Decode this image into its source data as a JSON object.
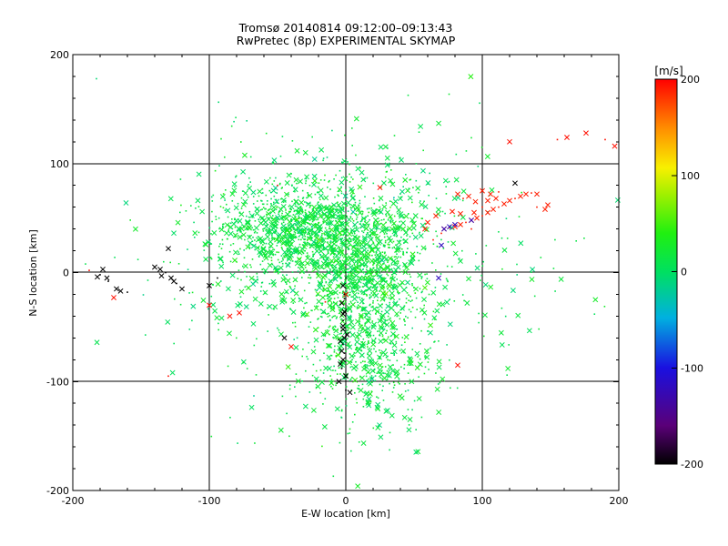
{
  "chart_data": {
    "type": "scatter",
    "title": "Tromsø 20140814 09:12:00–09:13:43",
    "subtitle": "RwPretec (8p) EXPERIMENTAL SKYMAP",
    "xlabel": "E-W location [km]",
    "ylabel": "N-S location [km]",
    "xlim": [
      -200,
      200
    ],
    "ylim": [
      -200,
      200
    ],
    "xticks": [
      "-200",
      "-100",
      "0",
      "100",
      "200"
    ],
    "yticks": [
      "-200",
      "-100",
      "0",
      "100",
      "200"
    ],
    "grid": true,
    "marker_styles": [
      "dot",
      "cross"
    ],
    "colorbar": {
      "label": "[m/s]",
      "range": [
        -200,
        200
      ],
      "ticks": [
        "200",
        "100",
        "0",
        "-100",
        "-200"
      ],
      "colormap": "rainbow (black-purple-blue-cyan-green-yellow-red)"
    },
    "clusters": [
      {
        "x": 5,
        "y": 10,
        "sx": 25,
        "sy": 30,
        "n": 900,
        "v": 20
      },
      {
        "x": -40,
        "y": 40,
        "sx": 30,
        "sy": 20,
        "n": 700,
        "v": 15
      },
      {
        "x": 15,
        "y": -70,
        "sx": 22,
        "sy": 35,
        "n": 500,
        "v": 15
      },
      {
        "x": 0,
        "y": 0,
        "sx": 70,
        "sy": 60,
        "n": 500,
        "v": 10
      },
      {
        "x": 0,
        "y": 50,
        "sx": 50,
        "sy": 40,
        "n": 250,
        "v": 10
      }
    ],
    "series": [
      {
        "name": "red arc",
        "v": 190,
        "points": [
          [
            72,
            40
          ],
          [
            76,
            41
          ],
          [
            80,
            42
          ],
          [
            84,
            44
          ],
          [
            88,
            46
          ],
          [
            92,
            48
          ],
          [
            96,
            50
          ],
          [
            100,
            52
          ],
          [
            104,
            55
          ],
          [
            108,
            58
          ],
          [
            112,
            60
          ],
          [
            116,
            63
          ],
          [
            120,
            66
          ],
          [
            124,
            68
          ],
          [
            128,
            70
          ],
          [
            132,
            72
          ],
          [
            136,
            73
          ],
          [
            140,
            72
          ],
          [
            82,
            72
          ],
          [
            86,
            68
          ],
          [
            90,
            70
          ],
          [
            95,
            65
          ],
          [
            100,
            60
          ],
          [
            104,
            66
          ],
          [
            110,
            68
          ],
          [
            140,
            60
          ],
          [
            146,
            58
          ],
          [
            58,
            40
          ],
          [
            64,
            30
          ],
          [
            60,
            46
          ],
          [
            66,
            52
          ],
          [
            70,
            36
          ],
          [
            78,
            56
          ],
          [
            84,
            54
          ],
          [
            92,
            40
          ],
          [
            148,
            62
          ],
          [
            106,
            72
          ],
          [
            112,
            74
          ],
          [
            100,
            75
          ],
          [
            94,
            55
          ]
        ]
      },
      {
        "name": "red sparse",
        "v": 195,
        "points": [
          [
            -100,
            -30
          ],
          [
            -130,
            -95
          ],
          [
            -170,
            -23
          ],
          [
            -78,
            -37
          ],
          [
            -15,
            -27
          ],
          [
            -40,
            -68
          ],
          [
            25,
            78
          ],
          [
            -50,
            80
          ],
          [
            0,
            -20
          ],
          [
            82,
            -85
          ],
          [
            -188,
            2
          ],
          [
            -85,
            -40
          ],
          [
            120,
            120
          ],
          [
            155,
            122
          ],
          [
            162,
            124
          ],
          [
            176,
            128
          ],
          [
            190,
            122
          ],
          [
            197,
            116
          ]
        ]
      },
      {
        "name": "blue",
        "v": -120,
        "points": [
          [
            68,
            -5
          ],
          [
            70,
            25
          ],
          [
            72,
            40
          ],
          [
            76,
            42
          ],
          [
            80,
            44
          ],
          [
            92,
            48
          ]
        ]
      },
      {
        "name": "black column",
        "v": -200,
        "points": [
          [
            -2,
            -12
          ],
          [
            -1,
            -20
          ],
          [
            -3,
            -28
          ],
          [
            -1,
            -36
          ],
          [
            -2,
            -44
          ],
          [
            -2,
            -52
          ],
          [
            -1,
            -60
          ],
          [
            -2,
            -66
          ],
          [
            -3,
            -72
          ],
          [
            -2,
            -80
          ],
          [
            -3,
            -88
          ],
          [
            0,
            -95
          ],
          [
            -5,
            -100
          ],
          [
            0,
            -108
          ],
          [
            3,
            -110
          ],
          [
            -4,
            -84
          ],
          [
            -1,
            -74
          ],
          [
            1,
            -57
          ],
          [
            -2,
            -38
          ],
          [
            -1,
            -24
          ],
          [
            -4,
            -63
          ],
          [
            -2,
            -49
          ]
        ]
      },
      {
        "name": "black west",
        "v": -200,
        "points": [
          [
            -178,
            3
          ],
          [
            -180,
            -2
          ],
          [
            -175,
            -5
          ],
          [
            -182,
            -4
          ],
          [
            -174,
            -8
          ],
          [
            -168,
            -15
          ],
          [
            -165,
            -17
          ],
          [
            -160,
            -18
          ],
          [
            -140,
            5
          ],
          [
            -136,
            3
          ],
          [
            -132,
            0
          ],
          [
            -128,
            -5
          ],
          [
            -126,
            -8
          ],
          [
            -124,
            -10
          ],
          [
            -120,
            -15
          ],
          [
            -100,
            -12
          ],
          [
            -94,
            -5
          ],
          [
            -130,
            22
          ],
          [
            -45,
            -60
          ],
          [
            0,
            -5
          ],
          [
            124,
            82
          ],
          [
            -135,
            -3
          ]
        ]
      }
    ]
  }
}
